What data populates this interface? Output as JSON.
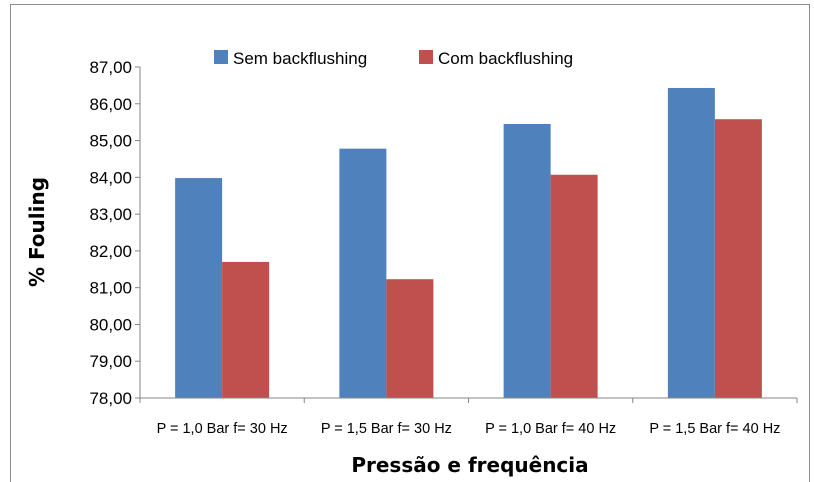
{
  "chart_data": {
    "type": "bar",
    "title": "",
    "xlabel": "Pressão e frequência",
    "ylabel": "% Fouling",
    "ylim": [
      78,
      87
    ],
    "yticks": [
      "78,00",
      "79,00",
      "80,00",
      "81,00",
      "82,00",
      "83,00",
      "84,00",
      "85,00",
      "86,00",
      "87,00"
    ],
    "categories": [
      "P = 1,0 Bar  f= 30 Hz",
      "P = 1,5 Bar  f= 30 Hz",
      "P = 1,0 Bar  f= 40 Hz",
      "P = 1,5 Bar  f= 40 Hz"
    ],
    "series": [
      {
        "name": "Sem backflushing",
        "color": "#4f81bd",
        "values": [
          83.98,
          84.78,
          85.45,
          86.43
        ]
      },
      {
        "name": "Com backflushing",
        "color": "#c0504d",
        "values": [
          81.7,
          81.23,
          84.07,
          85.58
        ]
      }
    ],
    "grid": false,
    "legend": "top"
  }
}
